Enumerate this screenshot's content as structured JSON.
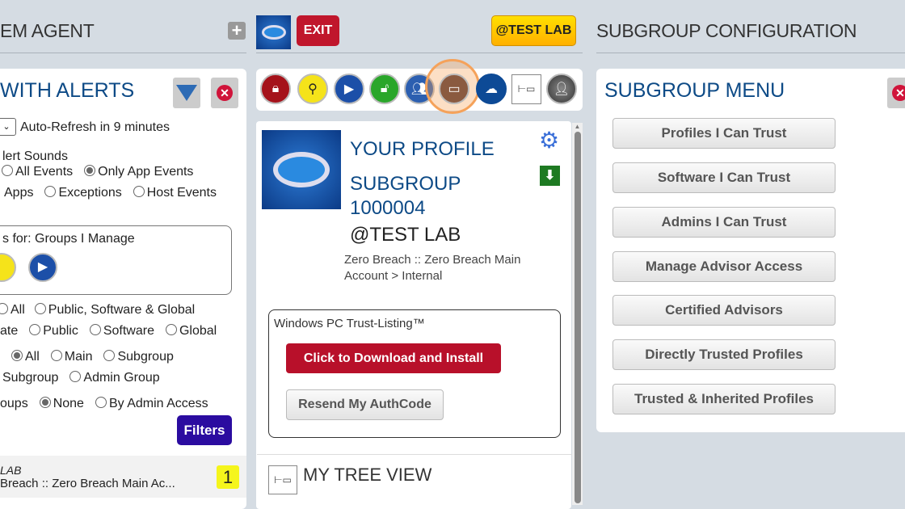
{
  "left": {
    "header": "EM AGENT",
    "title": "WITH ALERTS",
    "auto_refresh": "Auto-Refresh in 9 minutes",
    "alert_sounds": "lert Sounds",
    "sounds_row1": [
      "All Events",
      "Only App Events"
    ],
    "sounds_row2": [
      "Apps",
      "Exceptions",
      "Host Events"
    ],
    "groups_label": "s for: Groups I Manage",
    "filter_row1": [
      "All",
      "Public, Software & Global"
    ],
    "filter_row2": [
      "ate",
      "Public",
      "Software",
      "Global"
    ],
    "filter_row3": [
      "All",
      "Main",
      "Subgroup"
    ],
    "filter_row4": [
      "Subgroup",
      "Admin Group"
    ],
    "filter_row5": [
      "oups",
      "None",
      "By Admin Access"
    ],
    "filters_button": "Filters",
    "item": {
      "name": "LAB",
      "path": "Breach :: Zero Breach Main Ac...",
      "count": "1"
    }
  },
  "middle": {
    "exit": "EXIT",
    "org_button": "@TEST LAB",
    "profile_title": "YOUR PROFILE",
    "subgroup_label": "SUBGROUP",
    "subgroup_id": "1000004",
    "org": "@TEST LAB",
    "path": "Zero Breach :: Zero Breach Main Account > Internal",
    "trust_box_title": "Windows PC Trust-Listing™",
    "download_button": "Click to Download and Install",
    "resend_button": "Resend My AuthCode",
    "tree_view": "MY TREE VIEW"
  },
  "right": {
    "header": "SUBGROUP CONFIGURATION",
    "menu_title": "SUBGROUP MENU",
    "menu_items": [
      "Profiles I Can Trust",
      "Software I Can Trust",
      "Admins I Can Trust",
      "Manage Advisor Access",
      "Certified Advisors",
      "Directly Trusted Profiles",
      "Trusted & Inherited Profiles"
    ]
  },
  "colors": {
    "accent": "#0d4a86",
    "exit": "#c0162c",
    "org": "#ffc200",
    "filters": "#2b0ca0",
    "highlight": "#f5a25a"
  }
}
